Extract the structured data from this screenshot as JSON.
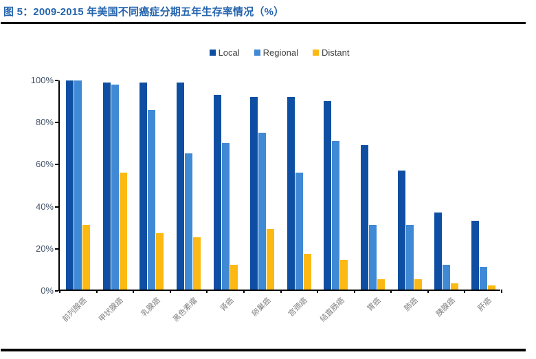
{
  "header": {
    "title": "图 5：2009-2015 年美国不同癌症分期五年生存率情况（%）"
  },
  "chart_data": {
    "type": "bar",
    "title": "2009-2015 年美国不同癌症分期五年生存率情况（%）",
    "categories": [
      "前列腺癌",
      "甲状腺癌",
      "乳腺癌",
      "黑色素瘤",
      "肾癌",
      "卵巢癌",
      "宫颈癌",
      "结直肠癌",
      "胃癌",
      "肺癌",
      "胰腺癌",
      "肝癌"
    ],
    "series": [
      {
        "name": "Local",
        "color": "#0F4FA3",
        "values": [
          100,
          99,
          99,
          99,
          93,
          92,
          92,
          90,
          69,
          57,
          37,
          33
        ]
      },
      {
        "name": "Regional",
        "color": "#4089D5",
        "values": [
          100,
          98,
          86,
          65,
          70,
          75,
          56,
          71,
          31,
          31,
          12,
          11
        ]
      },
      {
        "name": "Distant",
        "color": "#FDB913",
        "values": [
          31,
          56,
          27,
          25,
          12,
          29,
          17,
          14,
          5,
          5,
          3,
          2
        ]
      }
    ],
    "ylim": [
      0,
      100
    ],
    "ytick_step": 20,
    "ytick_labels": [
      "0%",
      "20%",
      "40%",
      "60%",
      "80%",
      "100%"
    ],
    "grid": false,
    "legend_position": "top-center",
    "axis_color": "#000000",
    "ylabel_color": "#44546A",
    "xlabel_color": "#7F7F7F"
  }
}
